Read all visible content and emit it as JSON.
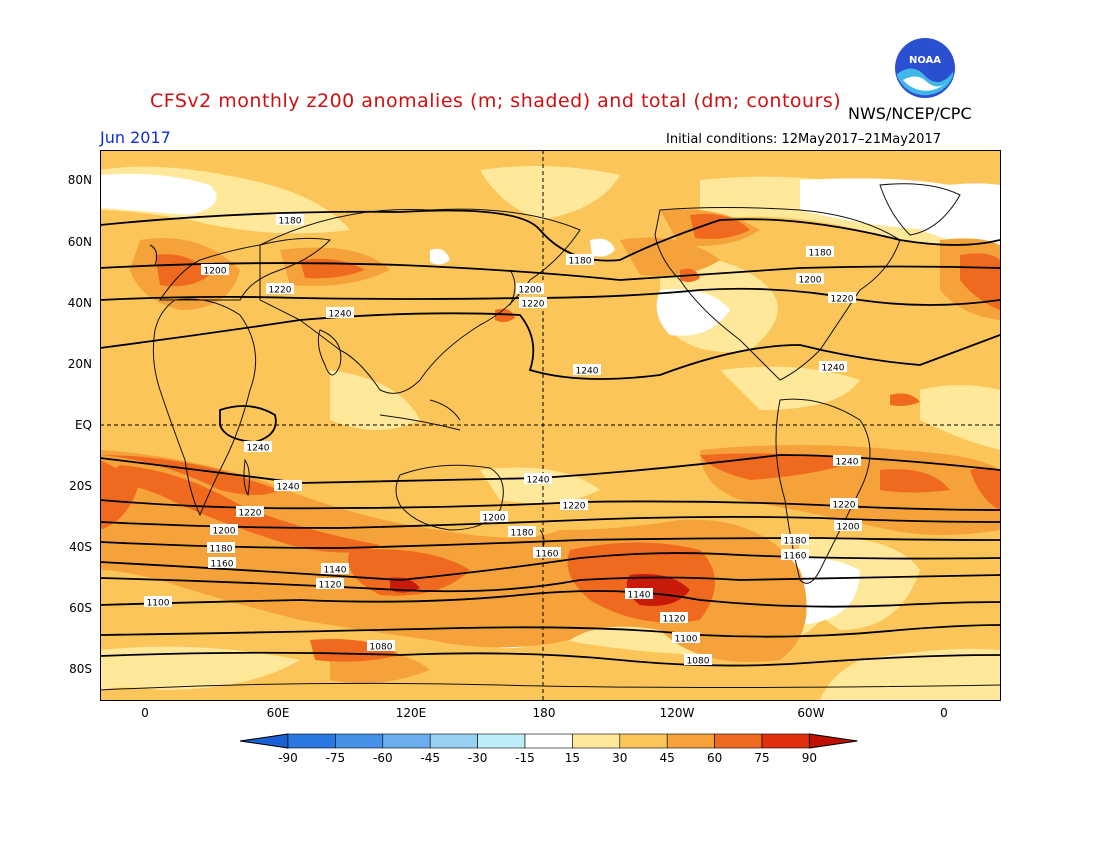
{
  "header": {
    "title": "CFSv2 monthly z200 anomalies (m; shaded) and total (dm; contours)",
    "agency": "NWS/NCEP/CPC",
    "month": "Jun 2017",
    "initial_conditions": "Initial conditions: 12May2017–21May2017",
    "logo_text": "NOAA"
  },
  "axes": {
    "lat_ticks": [
      "80N",
      "60N",
      "40N",
      "20N",
      "EQ",
      "20S",
      "40S",
      "60S",
      "80S"
    ],
    "lon_ticks": [
      "0",
      "60E",
      "120E",
      "180",
      "120W",
      "60W",
      "0"
    ]
  },
  "contour_labels": [
    "1180",
    "1200",
    "1220",
    "1240",
    "1180",
    "1200",
    "1220",
    "1240",
    "1180",
    "1200",
    "1220",
    "1240",
    "1240",
    "1240",
    "1220",
    "1200",
    "1180",
    "1160",
    "1140",
    "1120",
    "1100",
    "1080",
    "1240",
    "1220",
    "1200",
    "1180",
    "1160",
    "1140",
    "1120",
    "1100",
    "1080",
    "1240",
    "1220",
    "1200",
    "1180",
    "1160"
  ],
  "colorbar": {
    "ticks": [
      "-90",
      "-75",
      "-60",
      "-45",
      "-30",
      "-15",
      "15",
      "30",
      "45",
      "60",
      "75",
      "90"
    ],
    "colors": [
      "#1a5fd4",
      "#2a78e2",
      "#4591e8",
      "#6aaeee",
      "#98d0f2",
      "#bdeef7",
      "#ffffff",
      "#ffe89a",
      "#fbc55a",
      "#f6a23a",
      "#ef6a1e",
      "#e03010",
      "#c01000"
    ]
  }
}
